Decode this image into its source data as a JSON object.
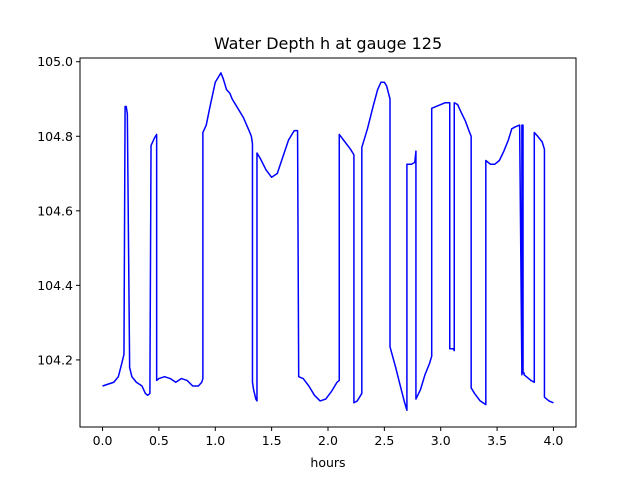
{
  "chart_data": {
    "type": "line",
    "title": "Water Depth h at gauge 125",
    "xlabel": "hours",
    "ylabel": "",
    "xlim": [
      -0.2,
      4.2
    ],
    "ylim": [
      104.02,
      105.01
    ],
    "xticks": [
      0.0,
      0.5,
      1.0,
      1.5,
      2.0,
      2.5,
      3.0,
      3.5,
      4.0
    ],
    "xtick_labels": [
      "0.0",
      "0.5",
      "1.0",
      "1.5",
      "2.0",
      "2.5",
      "3.0",
      "3.5",
      "4.0"
    ],
    "yticks": [
      104.2,
      104.4,
      104.6,
      104.8,
      105.0
    ],
    "ytick_labels": [
      "104.2",
      "104.4",
      "104.6",
      "104.8",
      "105.0"
    ],
    "grid": false,
    "series": [
      {
        "name": "",
        "color": "#0000ff",
        "x": [
          0.0,
          0.05,
          0.1,
          0.14,
          0.17,
          0.19,
          0.2,
          0.21,
          0.22,
          0.24,
          0.24,
          0.26,
          0.3,
          0.35,
          0.38,
          0.4,
          0.42,
          0.43,
          0.43,
          0.46,
          0.48,
          0.48,
          0.5,
          0.55,
          0.6,
          0.65,
          0.7,
          0.75,
          0.8,
          0.85,
          0.88,
          0.89,
          0.89,
          0.92,
          0.95,
          1.0,
          1.05,
          1.07,
          1.1,
          1.13,
          1.15,
          1.2,
          1.25,
          1.3,
          1.32,
          1.33,
          1.33,
          1.34,
          1.34,
          1.36,
          1.37,
          1.37,
          1.4,
          1.45,
          1.5,
          1.55,
          1.6,
          1.65,
          1.7,
          1.73,
          1.74,
          1.74,
          1.78,
          1.83,
          1.88,
          1.93,
          1.98,
          2.03,
          2.08,
          2.1,
          2.1,
          2.15,
          2.2,
          2.22,
          2.23,
          2.23,
          2.26,
          2.29,
          2.3,
          2.3,
          2.35,
          2.4,
          2.44,
          2.47,
          2.5,
          2.52,
          2.55,
          2.55,
          2.6,
          2.65,
          2.68,
          2.7,
          2.7,
          2.74,
          2.77,
          2.78,
          2.78,
          2.82,
          2.86,
          2.9,
          2.92,
          2.92,
          2.96,
          3.0,
          3.04,
          3.08,
          3.08,
          3.11,
          3.12,
          3.12,
          3.15,
          3.18,
          3.22,
          3.25,
          3.27,
          3.27,
          3.3,
          3.35,
          3.4,
          3.4,
          3.44,
          3.48,
          3.52,
          3.56,
          3.6,
          3.63,
          3.66,
          3.7,
          3.72,
          3.72,
          3.73,
          3.73,
          3.74,
          3.74,
          3.76,
          3.8,
          3.83,
          3.83,
          3.86,
          3.9,
          3.92,
          3.92,
          3.96,
          4.0
        ],
        "y": [
          104.13,
          104.135,
          104.14,
          104.155,
          104.19,
          104.215,
          104.88,
          104.88,
          104.86,
          104.19,
          104.18,
          104.155,
          104.14,
          104.13,
          104.11,
          104.105,
          104.11,
          104.77,
          104.775,
          104.795,
          104.805,
          104.145,
          104.15,
          104.155,
          104.15,
          104.14,
          104.15,
          104.145,
          104.13,
          104.13,
          104.14,
          104.15,
          104.81,
          104.83,
          104.875,
          104.945,
          104.97,
          104.955,
          104.925,
          104.915,
          104.9,
          104.875,
          104.85,
          104.815,
          104.8,
          104.78,
          104.14,
          104.12,
          104.12,
          104.095,
          104.09,
          104.755,
          104.74,
          104.71,
          104.69,
          104.7,
          104.745,
          104.79,
          104.815,
          104.815,
          104.155,
          104.155,
          104.15,
          104.13,
          104.105,
          104.09,
          104.095,
          104.115,
          104.14,
          104.145,
          104.805,
          104.785,
          104.765,
          104.755,
          104.75,
          104.085,
          104.09,
          104.105,
          104.11,
          104.77,
          104.82,
          104.88,
          104.925,
          104.945,
          104.945,
          104.935,
          104.9,
          104.235,
          104.18,
          104.12,
          104.085,
          104.065,
          104.725,
          104.725,
          104.73,
          104.76,
          104.095,
          104.12,
          104.16,
          104.19,
          104.21,
          104.875,
          104.88,
          104.885,
          104.89,
          104.89,
          104.23,
          104.23,
          104.225,
          104.89,
          104.885,
          104.865,
          104.84,
          104.815,
          104.8,
          104.125,
          104.11,
          104.09,
          104.08,
          104.735,
          104.725,
          104.725,
          104.735,
          104.76,
          104.79,
          104.82,
          104.825,
          104.83,
          104.16,
          104.83,
          104.83,
          104.165,
          104.165,
          104.16,
          104.155,
          104.145,
          104.14,
          104.81,
          104.8,
          104.785,
          104.765,
          104.1,
          104.09,
          104.085
        ]
      }
    ]
  }
}
